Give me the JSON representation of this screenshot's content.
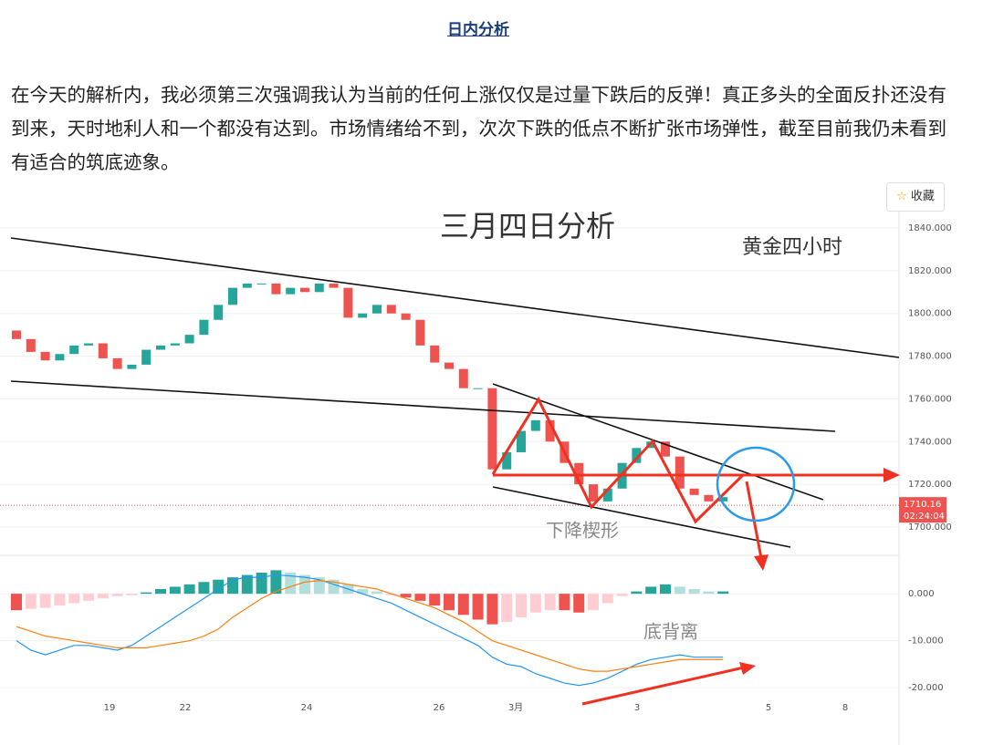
{
  "header": {
    "title": "日内分析"
  },
  "paragraph": "在今天的解析内，我必须第三次强调我认为当前的任何上涨仅仅是过量下跌后的反弹！真正多头的全面反扑还没有到来，天时地利人和一个都没有达到。市场情绪给不到，次次下跌的低点不断扩张市场弹性，截至目前我仍未看到有适合的筑底迹象。",
  "favorite": "收藏",
  "chart_data": {
    "type": "candlestick",
    "title": "三月四日分析",
    "subtitle": "黄金四小时",
    "annotations": [
      "下降楔形",
      "底背离"
    ],
    "up_color": "#26a69a",
    "down_color": "#ef5350",
    "x_labels": [
      "19",
      "22",
      "24",
      "26",
      "3月",
      "3",
      "5",
      "8"
    ],
    "open": [
      1792,
      1788,
      1782,
      1778,
      1781,
      1785,
      1786,
      1779,
      1774,
      1776,
      1783,
      1785,
      1786,
      1790,
      1797,
      1804,
      1812,
      1814,
      1814,
      1809,
      1812,
      1810,
      1814,
      1812,
      1798,
      1800,
      1804,
      1800,
      1797,
      1785,
      1777,
      1774,
      1765,
      1765,
      1727,
      1735,
      1745,
      1750,
      1740,
      1730,
      1720,
      1712,
      1718,
      1730,
      1737,
      1740,
      1733,
      1718,
      1715,
      1712
    ],
    "close": [
      1788,
      1782,
      1778,
      1781,
      1785,
      1786,
      1779,
      1774,
      1776,
      1783,
      1785,
      1786,
      1790,
      1797,
      1804,
      1812,
      1814,
      1814,
      1809,
      1812,
      1810,
      1814,
      1812,
      1798,
      1800,
      1804,
      1800,
      1797,
      1785,
      1777,
      1774,
      1765,
      1765,
      1727,
      1735,
      1745,
      1750,
      1740,
      1730,
      1720,
      1712,
      1718,
      1730,
      1737,
      1740,
      1733,
      1718,
      1715,
      1712,
      1714
    ],
    "ylim": [
      1687.6,
      1847.7
    ],
    "yticks": [
      {
        "value": 1700,
        "label": "1700.000"
      },
      {
        "value": 1720,
        "label": "1720.000"
      },
      {
        "value": 1740,
        "label": "1740.000"
      },
      {
        "value": 1760,
        "label": "1760.000"
      },
      {
        "value": 1780,
        "label": "1780.000"
      },
      {
        "value": 1800,
        "label": "1800.000"
      },
      {
        "value": 1820,
        "label": "1820.000"
      },
      {
        "value": 1840,
        "label": "1840.000"
      }
    ],
    "last_price": {
      "value": 1710.16,
      "label": "1710.16",
      "countdown": "02:24:04"
    },
    "macd": {
      "ylim": [
        -22.1,
        7.6
      ],
      "yticks": [
        {
          "value": 0,
          "label": "0.000"
        },
        {
          "value": -10,
          "label": "-10.000"
        },
        {
          "value": -20,
          "label": "-20.000"
        }
      ],
      "histogram": [
        -3.5,
        -3.2,
        -3,
        -2.5,
        -2,
        -1.5,
        -1,
        -0.5,
        -0.3,
        0.3,
        1,
        1.5,
        2,
        2.5,
        3,
        3.5,
        4,
        4.5,
        5,
        4.5,
        4,
        3.5,
        3,
        2,
        1,
        0.5,
        -0.3,
        -0.8,
        -1.5,
        -2.5,
        -3.5,
        -4.5,
        -5.5,
        -6.5,
        -6,
        -5,
        -4,
        -3.5,
        -3.5,
        -4,
        -3.5,
        -2,
        -0.5,
        0.5,
        1.5,
        2,
        1.5,
        1,
        0.5,
        0.5
      ],
      "dif_color": "#2196f3",
      "dea_color": "#ff7f0e",
      "dif": [
        -10,
        -12,
        -13,
        -12,
        -11,
        -11,
        -11.5,
        -12,
        -11,
        -9,
        -7,
        -5,
        -3,
        -1,
        1,
        3,
        3.5,
        3.5,
        4,
        3.8,
        3.5,
        3,
        2,
        1,
        0,
        -1,
        -2,
        -3.5,
        -5,
        -6.5,
        -8,
        -9.5,
        -11,
        -13.5,
        -15,
        -15.5,
        -17,
        -18,
        -19,
        -19.5,
        -19,
        -18,
        -16.5,
        -15,
        -14,
        -13.5,
        -13,
        -13.5,
        -13.5,
        -13.5
      ],
      "dea": [
        -7,
        -8,
        -9,
        -9.5,
        -10,
        -10.5,
        -11,
        -11.5,
        -11.5,
        -11.5,
        -11,
        -10.5,
        -10,
        -9,
        -7.5,
        -5,
        -3,
        -1,
        0.5,
        1.5,
        2.5,
        2.8,
        2.5,
        2,
        1.5,
        1,
        0,
        -1,
        -2,
        -3,
        -4.5,
        -6,
        -8,
        -10,
        -11,
        -12,
        -13,
        -14,
        -15,
        -16,
        -16.5,
        -16.5,
        -16,
        -15.5,
        -15,
        -14.5,
        -14,
        -14,
        -14,
        -14
      ]
    }
  }
}
